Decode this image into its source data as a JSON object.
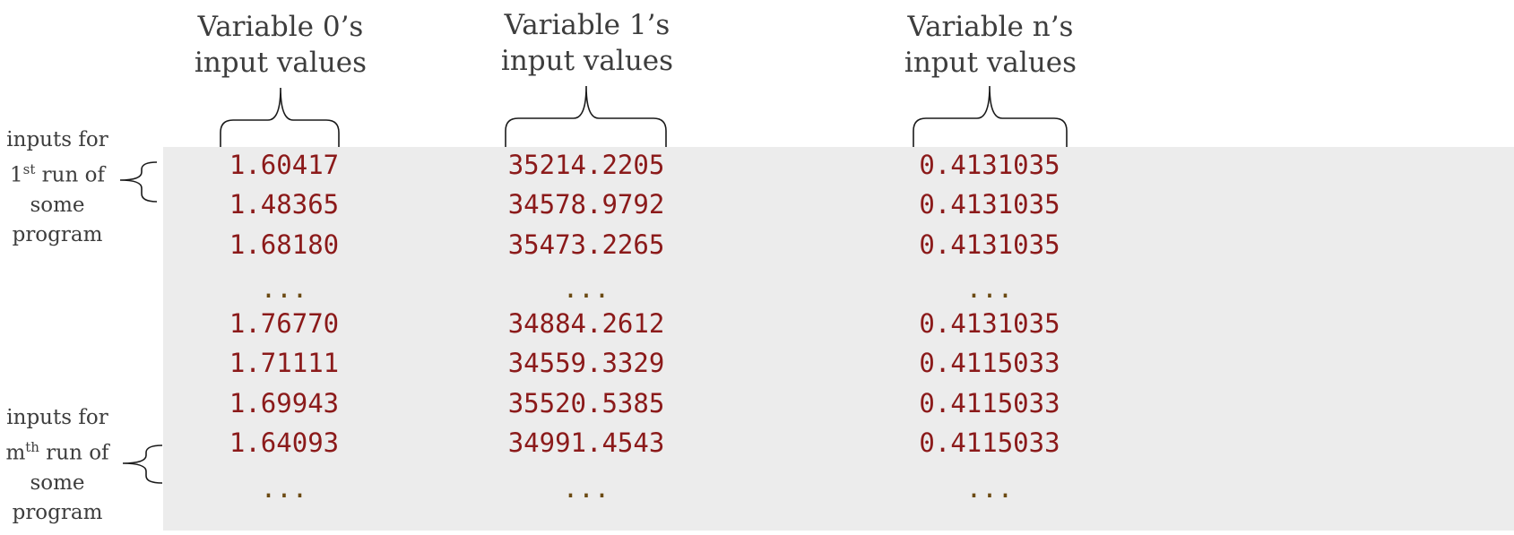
{
  "columns": [
    {
      "title_line1": "Variable 0’s",
      "title_line2": "input values",
      "values": [
        "1.60417",
        "1.48365",
        "1.68180",
        "...",
        "1.76770",
        "1.71111",
        "1.69943",
        "1.64093",
        "..."
      ]
    },
    {
      "title_line1": "Variable 1’s",
      "title_line2": "input values",
      "values": [
        "35214.2205",
        "34578.9792",
        "35473.2265",
        "...",
        "34884.2612",
        "34559.3329",
        "35520.5385",
        "34991.4543",
        "..."
      ]
    },
    {
      "title_line1": "Variable n’s",
      "title_line2": "input values",
      "values": [
        "0.4131035",
        "0.4131035",
        "0.4131035",
        "...",
        "0.4131035",
        "0.4115033",
        "0.4115033",
        "0.4115033",
        "..."
      ]
    }
  ],
  "row_labels": [
    {
      "line1": "inputs for",
      "ordinal": "1",
      "suffix": "st",
      "rest": " run of",
      "line3": "some",
      "line4": "program"
    },
    {
      "line1": "inputs for",
      "ordinal": "m",
      "suffix": "th",
      "rest": " run of",
      "line3": "some",
      "line4": "program"
    }
  ]
}
